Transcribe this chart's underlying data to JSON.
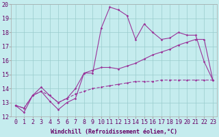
{
  "title": "",
  "xlabel": "Windchill (Refroidissement éolien,°C)",
  "ylabel": "",
  "background_color": "#c5ecee",
  "grid_color": "#99cccc",
  "line_color": "#993399",
  "xlim": [
    -0.5,
    23.5
  ],
  "ylim": [
    12,
    20
  ],
  "yticks": [
    12,
    13,
    14,
    15,
    16,
    17,
    18,
    19,
    20
  ],
  "xticks": [
    0,
    1,
    2,
    3,
    4,
    5,
    6,
    7,
    8,
    9,
    10,
    11,
    12,
    13,
    14,
    15,
    16,
    17,
    18,
    19,
    20,
    21,
    22,
    23
  ],
  "line1_x": [
    0,
    1,
    2,
    3,
    4,
    5,
    6,
    7,
    8,
    9,
    10,
    11,
    12,
    13,
    14,
    15,
    16,
    17,
    18,
    19,
    20,
    21,
    22,
    23
  ],
  "line1_y": [
    12.8,
    12.3,
    13.5,
    13.8,
    13.1,
    12.5,
    13.0,
    13.3,
    15.1,
    15.1,
    18.3,
    19.8,
    19.6,
    19.2,
    17.5,
    18.6,
    18.0,
    17.5,
    17.6,
    18.0,
    17.8,
    17.8,
    15.9,
    14.6
  ],
  "line2_x": [
    0,
    1,
    2,
    3,
    4,
    5,
    6,
    7,
    8,
    9,
    10,
    11,
    12,
    13,
    14,
    15,
    16,
    17,
    18,
    19,
    20,
    21,
    22,
    23
  ],
  "line2_y": [
    12.8,
    12.6,
    13.5,
    14.1,
    13.5,
    13.0,
    13.3,
    14.0,
    15.1,
    15.3,
    15.5,
    15.5,
    15.4,
    15.6,
    15.8,
    16.1,
    16.4,
    16.6,
    16.8,
    17.1,
    17.3,
    17.5,
    17.5,
    14.6
  ],
  "line3_x": [
    0,
    1,
    2,
    3,
    4,
    5,
    6,
    7,
    8,
    9,
    10,
    11,
    12,
    13,
    14,
    15,
    16,
    17,
    18,
    19,
    20,
    21,
    22,
    23
  ],
  "line3_y": [
    12.8,
    12.6,
    13.5,
    13.8,
    13.5,
    13.0,
    13.3,
    13.6,
    13.8,
    14.0,
    14.1,
    14.2,
    14.3,
    14.4,
    14.5,
    14.5,
    14.5,
    14.6,
    14.6,
    14.6,
    14.6,
    14.6,
    14.6,
    14.6
  ],
  "marker": "D",
  "marker_size": 1.8,
  "line_width": 0.8,
  "font_size_xlabel": 6,
  "font_size_ticks": 6
}
